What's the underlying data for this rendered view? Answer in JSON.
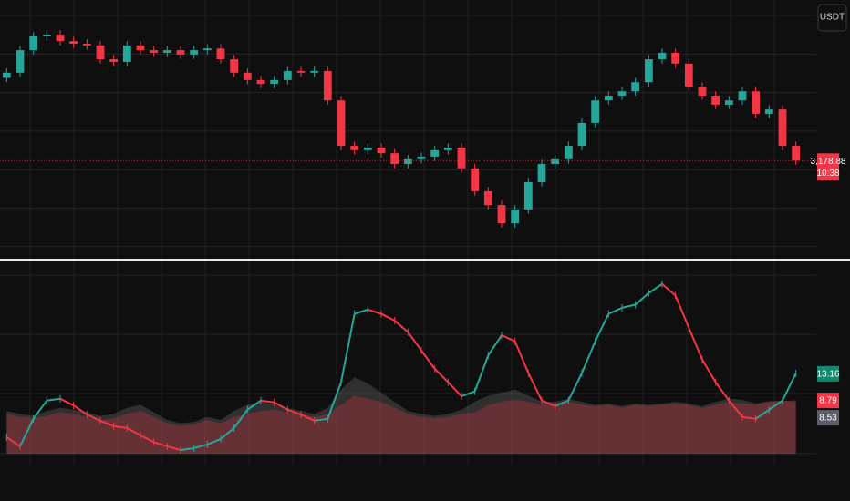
{
  "currency": "USDT",
  "chart_data": [
    {
      "type": "candlestick",
      "up_color": "#26a69a",
      "down_color": "#f23645",
      "ylim": [
        2950,
        3550
      ],
      "close_label": "3,178.88",
      "countdown": "10:38",
      "open": [
        3370,
        3382,
        3434,
        3466,
        3470,
        3455,
        3449,
        3445,
        3413,
        3407,
        3445,
        3434,
        3428,
        3434,
        3424,
        3434,
        3438,
        3413,
        3382,
        3365,
        3356,
        3365,
        3386,
        3382,
        3386,
        3318,
        3213,
        3203,
        3209,
        3196,
        3171,
        3182,
        3188,
        3203,
        3209,
        3161,
        3108,
        3076,
        3034,
        3066,
        3129,
        3171,
        3182,
        3213,
        3266,
        3318,
        3329,
        3339,
        3360,
        3413,
        3428,
        3403,
        3350,
        3329,
        3308,
        3318,
        3339,
        3287,
        3297,
        3213
      ],
      "high": [
        3392,
        3444,
        3476,
        3480,
        3480,
        3465,
        3459,
        3455,
        3423,
        3455,
        3455,
        3444,
        3444,
        3444,
        3444,
        3448,
        3448,
        3423,
        3392,
        3375,
        3375,
        3396,
        3396,
        3396,
        3396,
        3328,
        3223,
        3219,
        3219,
        3206,
        3192,
        3198,
        3213,
        3219,
        3219,
        3171,
        3118,
        3086,
        3076,
        3139,
        3181,
        3192,
        3223,
        3276,
        3328,
        3339,
        3349,
        3370,
        3423,
        3438,
        3438,
        3413,
        3360,
        3339,
        3328,
        3349,
        3349,
        3307,
        3307,
        3223
      ],
      "low": [
        3360,
        3372,
        3424,
        3456,
        3445,
        3439,
        3435,
        3403,
        3397,
        3397,
        3424,
        3418,
        3418,
        3414,
        3414,
        3424,
        3403,
        3372,
        3355,
        3346,
        3346,
        3355,
        3372,
        3372,
        3308,
        3203,
        3193,
        3193,
        3186,
        3161,
        3161,
        3172,
        3178,
        3193,
        3151,
        3098,
        3066,
        3024,
        3024,
        3056,
        3119,
        3161,
        3172,
        3203,
        3256,
        3308,
        3319,
        3329,
        3350,
        3403,
        3393,
        3340,
        3319,
        3298,
        3298,
        3308,
        3277,
        3277,
        3203,
        3169
      ],
      "close": [
        3382,
        3434,
        3466,
        3470,
        3455,
        3449,
        3445,
        3413,
        3407,
        3445,
        3434,
        3428,
        3434,
        3424,
        3434,
        3438,
        3413,
        3382,
        3365,
        3356,
        3365,
        3386,
        3382,
        3386,
        3318,
        3213,
        3203,
        3209,
        3196,
        3171,
        3182,
        3188,
        3203,
        3209,
        3161,
        3108,
        3076,
        3034,
        3066,
        3129,
        3171,
        3182,
        3213,
        3266,
        3318,
        3329,
        3339,
        3360,
        3413,
        3428,
        3403,
        3350,
        3329,
        3308,
        3318,
        3339,
        3287,
        3297,
        3213,
        3178.88
      ]
    },
    {
      "type": "oscillator",
      "ylim": [
        0,
        30
      ],
      "series": [
        {
          "kind": "area",
          "color": "#888888",
          "label_color": "#5d606b",
          "last_label": "8.53",
          "values": [
            7.0,
            6.5,
            6.2,
            7.0,
            7.5,
            7.2,
            6.8,
            6.2,
            6.5,
            7.5,
            8.0,
            6.8,
            5.5,
            5.0,
            5.2,
            6.0,
            5.5,
            7.0,
            8.0,
            8.5,
            8.0,
            7.5,
            7.0,
            6.5,
            7.5,
            10.5,
            12.5,
            11.5,
            10.0,
            8.5,
            7.0,
            6.5,
            6.2,
            6.5,
            7.2,
            8.5,
            9.5,
            10.0,
            10.5,
            9.5,
            8.5,
            8.5,
            9.0,
            8.5,
            8.0,
            8.2,
            7.8,
            8.2,
            8.0,
            8.2,
            8.5,
            8.2,
            7.8,
            8.5,
            9.0,
            8.8,
            8.2,
            8.6,
            8.7,
            8.53
          ]
        },
        {
          "kind": "area",
          "color": "#f23645",
          "label_color": "#f23645",
          "last_label": "8.79",
          "values": [
            6.5,
            6.0,
            5.8,
            6.2,
            6.8,
            6.5,
            6.0,
            5.5,
            5.8,
            6.5,
            7.0,
            6.0,
            5.0,
            4.5,
            4.8,
            5.5,
            5.0,
            6.0,
            6.5,
            7.0,
            7.2,
            6.8,
            6.5,
            6.0,
            6.5,
            8.0,
            9.5,
            9.0,
            8.5,
            7.5,
            6.5,
            6.0,
            5.8,
            6.0,
            6.5,
            6.8,
            8.0,
            8.5,
            8.8,
            8.5,
            8.0,
            8.2,
            8.5,
            8.0,
            7.8,
            8.0,
            7.5,
            8.0,
            7.8,
            8.0,
            8.2,
            8.0,
            7.5,
            8.0,
            8.5,
            8.2,
            8.0,
            8.5,
            8.6,
            8.79
          ]
        },
        {
          "kind": "line",
          "up_color": "#26a69a",
          "down_color": "#f23645",
          "label_color": "#0f8a6f",
          "last_label": "13.16",
          "values": [
            2.7,
            1.2,
            5.7,
            8.7,
            9.0,
            7.9,
            6.4,
            5.4,
            4.5,
            4.2,
            3.0,
            1.9,
            1.2,
            0.6,
            0.9,
            1.5,
            2.4,
            4.2,
            7.2,
            8.7,
            8.4,
            7.2,
            6.4,
            5.4,
            5.7,
            11.7,
            22.9,
            23.6,
            22.9,
            21.8,
            19.9,
            16.9,
            13.9,
            11.7,
            9.4,
            10.2,
            16.1,
            19.4,
            18.4,
            13.2,
            8.7,
            7.8,
            8.7,
            13.2,
            18.4,
            22.9,
            23.9,
            24.4,
            26.3,
            27.8,
            25.9,
            20.6,
            15.4,
            11.7,
            8.7,
            6.0,
            5.7,
            7.2,
            8.7,
            13.16
          ]
        }
      ]
    }
  ]
}
